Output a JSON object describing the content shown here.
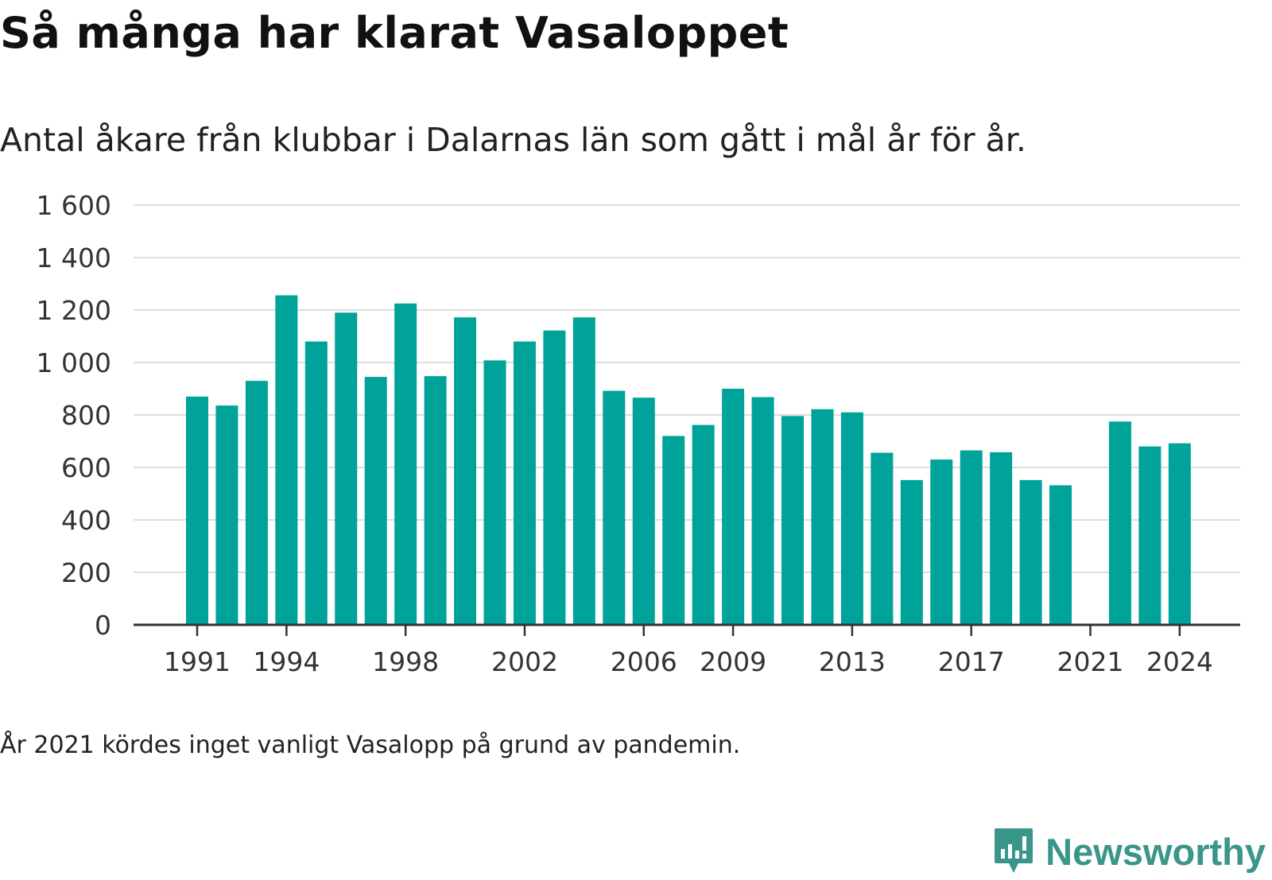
{
  "header": {
    "title": "Så många har klarat Vasaloppet",
    "subtitle": "Antal åkare från klubbar i Dalarnas län som gått i mål år för år."
  },
  "footnote": "År 2021 kördes inget vanligt Vasalopp på grund av pandemin.",
  "brand": {
    "name": "Newsworthy",
    "color": "#3a958a",
    "icon": "newsworthy-logo-icon"
  },
  "colors": {
    "bar": "#00a39a",
    "grid": "#dddddd",
    "axis": "#333333"
  },
  "chart_data": {
    "type": "bar",
    "title": "Så många har klarat Vasaloppet",
    "subtitle": "Antal åkare från klubbar i Dalarnas län som gått i mål år för år.",
    "xlabel": "",
    "ylabel": "",
    "ylim": [
      0,
      1600
    ],
    "yticks": [
      0,
      200,
      400,
      600,
      800,
      1000,
      1200,
      1400,
      1600
    ],
    "ytick_labels": [
      "0",
      "200",
      "400",
      "600",
      "800",
      "1 000",
      "1 200",
      "1 400",
      "1 600"
    ],
    "xticks": [
      1991,
      1994,
      1998,
      2002,
      2006,
      2009,
      2013,
      2017,
      2021,
      2024
    ],
    "grid": true,
    "legend": "none",
    "categories": [
      1991,
      1992,
      1993,
      1994,
      1995,
      1996,
      1997,
      1998,
      1999,
      2000,
      2001,
      2002,
      2003,
      2004,
      2005,
      2006,
      2007,
      2008,
      2009,
      2010,
      2011,
      2012,
      2013,
      2014,
      2015,
      2016,
      2017,
      2018,
      2019,
      2020,
      2021,
      2022,
      2023,
      2024
    ],
    "values": [
      870,
      836,
      930,
      1256,
      1080,
      1190,
      945,
      1225,
      948,
      1172,
      1008,
      1080,
      1122,
      1172,
      892,
      866,
      720,
      762,
      900,
      868,
      796,
      822,
      810,
      656,
      552,
      630,
      665,
      658,
      552,
      532,
      null,
      775,
      680,
      692
    ]
  }
}
